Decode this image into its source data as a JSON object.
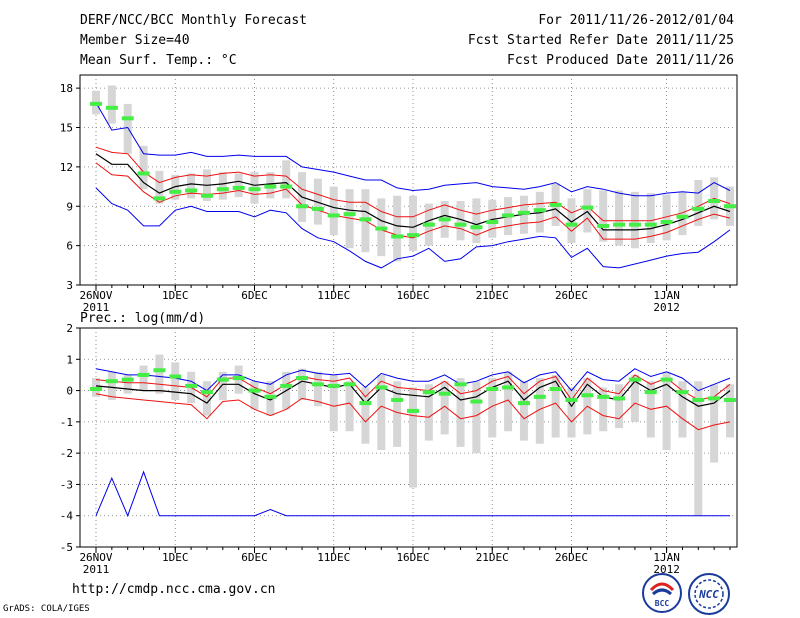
{
  "header": {
    "title": "DERF/NCC/BCC Monthly Forecast",
    "member_size": "Member Size=40",
    "variable": "Mean Surf. Temp.: °C",
    "forecast_period": "For 2011/11/26-2012/01/04",
    "started_date": "Fcst Started Refer Date 2011/11/25",
    "produced_date": "Fcst Produced Date 2011/11/26"
  },
  "footer": {
    "url": "http://cmdp.ncc.cma.gov.cn",
    "credit": "GrADS: COLA/IGES",
    "logo_bcc_text": "BCC",
    "logo_ncc_text": "NCC"
  },
  "colors": {
    "box": "#d6d6d6",
    "median": "#44ee44",
    "mean": "#000000",
    "stdev": "#ee1111",
    "extreme": "#0000ee",
    "grid": "#777777"
  },
  "chart_data": [
    {
      "type": "line",
      "name": "temperature",
      "title": "Mean Surf. Temp.: °C",
      "ylim": [
        3,
        19
      ],
      "yticks": [
        3,
        6,
        9,
        12,
        15,
        18
      ],
      "x_tick_labels": [
        {
          "day": 0,
          "label": "26NOV",
          "sub": "2011"
        },
        {
          "day": 5,
          "label": "1DEC"
        },
        {
          "day": 10,
          "label": "6DEC"
        },
        {
          "day": 15,
          "label": "11DEC"
        },
        {
          "day": 20,
          "label": "16DEC"
        },
        {
          "day": 25,
          "label": "21DEC"
        },
        {
          "day": 30,
          "label": "26DEC"
        },
        {
          "day": 36,
          "label": "1JAN",
          "sub": "2012"
        }
      ],
      "mean": [
        13.0,
        12.2,
        12.2,
        10.8,
        10.0,
        10.5,
        10.7,
        10.6,
        10.7,
        10.9,
        10.6,
        10.7,
        10.8,
        9.7,
        9.3,
        8.9,
        8.7,
        8.6,
        7.9,
        7.5,
        7.4,
        7.9,
        8.3,
        8.0,
        7.6,
        8.0,
        8.2,
        8.4,
        8.5,
        8.8,
        7.8,
        8.6,
        7.2,
        7.2,
        7.2,
        7.3,
        7.6,
        8.0,
        8.5,
        9.0,
        8.6
      ],
      "upper_sd": [
        13.5,
        13.1,
        13.0,
        11.6,
        10.8,
        11.2,
        11.4,
        11.3,
        11.5,
        11.6,
        11.3,
        11.4,
        11.3,
        10.3,
        9.9,
        9.5,
        9.3,
        9.3,
        8.6,
        8.2,
        8.2,
        8.7,
        9.1,
        8.7,
        8.4,
        8.7,
        8.9,
        9.1,
        9.2,
        9.3,
        8.5,
        9.0,
        7.9,
        7.9,
        7.9,
        7.9,
        8.2,
        8.5,
        9.0,
        9.6,
        9.2
      ],
      "lower_sd": [
        12.3,
        11.4,
        11.3,
        10.1,
        9.3,
        9.8,
        10.0,
        9.9,
        10.0,
        10.2,
        9.9,
        10.0,
        10.3,
        9.1,
        8.7,
        8.3,
        8.1,
        7.9,
        7.2,
        6.8,
        6.6,
        7.1,
        7.5,
        7.3,
        6.8,
        7.3,
        7.5,
        7.7,
        7.8,
        8.2,
        7.1,
        8.1,
        6.5,
        6.5,
        6.5,
        6.7,
        7.0,
        7.5,
        8.0,
        8.4,
        8.1
      ],
      "max": [
        16.9,
        14.8,
        15.0,
        13.0,
        12.9,
        12.9,
        13.1,
        12.8,
        12.8,
        12.9,
        12.8,
        12.8,
        12.8,
        12.0,
        11.8,
        11.6,
        11.3,
        11.0,
        11.0,
        10.4,
        10.2,
        10.3,
        10.6,
        10.7,
        10.8,
        10.5,
        10.4,
        10.3,
        10.5,
        10.8,
        10.1,
        10.5,
        10.3,
        10.0,
        9.8,
        9.8,
        10.0,
        10.1,
        10.0,
        10.8,
        10.2
      ],
      "min": [
        10.4,
        9.2,
        8.7,
        7.5,
        7.5,
        8.7,
        9.0,
        8.6,
        8.6,
        8.6,
        8.2,
        8.7,
        8.5,
        7.3,
        6.6,
        6.3,
        5.6,
        4.8,
        4.3,
        5.0,
        5.2,
        5.8,
        4.8,
        5.0,
        5.9,
        6.0,
        6.3,
        6.5,
        6.7,
        6.6,
        5.1,
        5.8,
        4.4,
        4.3,
        4.6,
        4.9,
        5.2,
        5.4,
        5.5,
        6.3,
        7.2
      ],
      "median": [
        16.8,
        16.5,
        15.7,
        11.5,
        9.6,
        10.1,
        10.2,
        9.8,
        10.3,
        10.4,
        10.3,
        10.5,
        10.5,
        9.0,
        8.8,
        8.3,
        8.4,
        8.0,
        7.3,
        6.7,
        6.8,
        7.6,
        8.0,
        7.6,
        7.4,
        7.8,
        8.3,
        8.5,
        8.7,
        9.1,
        7.6,
        8.9,
        7.5,
        7.6,
        7.6,
        7.6,
        7.8,
        8.2,
        8.8,
        9.4,
        9.0
      ],
      "box_hi": [
        17.8,
        18.2,
        16.8,
        13.6,
        11.7,
        11.4,
        11.5,
        11.8,
        11.6,
        11.5,
        11.6,
        11.6,
        12.5,
        11.6,
        11.1,
        10.5,
        10.3,
        10.3,
        9.6,
        9.8,
        9.8,
        9.2,
        9.4,
        9.4,
        9.6,
        9.5,
        9.7,
        9.8,
        10.1,
        10.7,
        9.6,
        10.3,
        10.2,
        10.2,
        10.1,
        10.0,
        9.9,
        10.1,
        11.0,
        11.2,
        10.5
      ],
      "box_lo": [
        16.0,
        15.3,
        13.0,
        10.3,
        9.2,
        9.5,
        9.6,
        9.4,
        9.5,
        9.7,
        9.2,
        9.6,
        9.6,
        7.8,
        7.6,
        6.8,
        5.8,
        5.5,
        5.2,
        4.8,
        5.6,
        6.0,
        6.6,
        6.4,
        6.2,
        6.6,
        6.8,
        6.9,
        7.0,
        7.5,
        6.2,
        7.0,
        6.3,
        6.0,
        5.8,
        6.2,
        6.4,
        6.8,
        7.5,
        8.0,
        7.5
      ]
    },
    {
      "type": "line",
      "name": "precipitation",
      "title": "Prec.: log(mm/d)",
      "ylim": [
        -5,
        2
      ],
      "yticks": [
        -5,
        -4,
        -3,
        -2,
        -1,
        0,
        1,
        2
      ],
      "x_tick_labels": [
        {
          "day": 0,
          "label": "26NOV",
          "sub": "2011"
        },
        {
          "day": 5,
          "label": "1DEC"
        },
        {
          "day": 10,
          "label": "6DEC"
        },
        {
          "day": 15,
          "label": "11DEC"
        },
        {
          "day": 20,
          "label": "16DEC"
        },
        {
          "day": 25,
          "label": "21DEC"
        },
        {
          "day": 30,
          "label": "26DEC"
        },
        {
          "day": 36,
          "label": "1JAN",
          "sub": "2012"
        }
      ],
      "mean": [
        0.15,
        0.1,
        0.05,
        0.0,
        0.0,
        -0.05,
        -0.1,
        -0.4,
        0.2,
        0.2,
        -0.1,
        -0.3,
        0.0,
        0.3,
        0.2,
        0.1,
        0.2,
        -0.4,
        0.1,
        -0.1,
        -0.15,
        -0.2,
        0.1,
        -0.3,
        -0.2,
        0.1,
        0.3,
        -0.3,
        0.1,
        0.3,
        -0.5,
        0.2,
        -0.2,
        -0.3,
        0.3,
        0.0,
        0.2,
        -0.2,
        -0.5,
        -0.4,
        0.0
      ],
      "upper_sd": [
        0.35,
        0.3,
        0.25,
        0.25,
        0.2,
        0.15,
        0.1,
        -0.2,
        0.4,
        0.4,
        0.1,
        -0.1,
        0.2,
        0.45,
        0.35,
        0.3,
        0.4,
        -0.2,
        0.3,
        0.1,
        0.05,
        0.0,
        0.3,
        -0.1,
        0.0,
        0.3,
        0.45,
        -0.1,
        0.3,
        0.45,
        -0.3,
        0.4,
        0.0,
        -0.1,
        0.5,
        0.2,
        0.4,
        0.0,
        -0.3,
        -0.2,
        0.2
      ],
      "lower_sd": [
        -0.1,
        -0.2,
        -0.25,
        -0.3,
        -0.35,
        -0.4,
        -0.45,
        -0.9,
        -0.35,
        -0.3,
        -0.6,
        -0.8,
        -0.6,
        -0.25,
        -0.35,
        -0.5,
        -0.4,
        -1.0,
        -0.5,
        -0.7,
        -0.8,
        -0.85,
        -0.5,
        -0.9,
        -0.8,
        -0.5,
        -0.3,
        -0.9,
        -0.6,
        -0.4,
        -1.0,
        -0.5,
        -0.8,
        -0.9,
        -0.4,
        -0.6,
        -0.5,
        -0.9,
        -1.25,
        -1.1,
        -1.0
      ],
      "max": [
        0.7,
        0.6,
        0.5,
        0.5,
        0.45,
        0.4,
        0.3,
        0.0,
        0.5,
        0.5,
        0.3,
        0.2,
        0.5,
        0.65,
        0.55,
        0.5,
        0.55,
        0.1,
        0.55,
        0.4,
        0.3,
        0.3,
        0.5,
        0.2,
        0.3,
        0.5,
        0.6,
        0.25,
        0.5,
        0.6,
        0.0,
        0.6,
        0.35,
        0.3,
        0.7,
        0.45,
        0.6,
        0.4,
        0.0,
        0.2,
        0.4
      ],
      "min": [
        -4.0,
        -2.8,
        -4.0,
        -2.6,
        -4.0,
        -4.0,
        -4.0,
        -4.0,
        -4.0,
        -4.0,
        -4.0,
        -3.8,
        -4.0,
        -4.0,
        -4.0,
        -4.0,
        -4.0,
        -4.0,
        -4.0,
        -4.0,
        -4.0,
        -4.0,
        -4.0,
        -4.0,
        -4.0,
        -4.0,
        -4.0,
        -4.0,
        -4.0,
        -4.0,
        -4.0,
        -4.0,
        -4.0,
        -4.0,
        -4.0,
        -4.0,
        -4.0,
        -4.0,
        -4.0,
        -4.0,
        -4.0
      ],
      "median": [
        0.05,
        0.3,
        0.35,
        0.5,
        0.65,
        0.45,
        0.15,
        -0.05,
        0.35,
        0.4,
        0.0,
        -0.2,
        0.15,
        0.4,
        0.2,
        0.15,
        0.2,
        -0.4,
        0.1,
        -0.3,
        -0.65,
        -0.05,
        -0.1,
        0.2,
        -0.35,
        0.05,
        0.1,
        -0.4,
        -0.2,
        0.05,
        -0.3,
        -0.15,
        -0.2,
        -0.25,
        0.35,
        -0.05,
        0.35,
        -0.05,
        -0.3,
        -0.25,
        -0.3
      ],
      "box_hi": [
        0.4,
        0.6,
        0.5,
        0.8,
        1.15,
        0.9,
        0.6,
        0.3,
        0.6,
        0.8,
        0.3,
        0.3,
        0.6,
        0.7,
        0.6,
        0.5,
        0.3,
        0.1,
        0.5,
        0.3,
        0.1,
        0.2,
        0.3,
        0.4,
        0.3,
        0.4,
        0.6,
        0.3,
        0.4,
        0.5,
        0.1,
        0.4,
        0.1,
        0.2,
        0.5,
        0.3,
        0.6,
        0.3,
        0.3,
        0.2,
        0.2
      ],
      "box_lo": [
        -0.2,
        -0.3,
        -0.1,
        0.0,
        -0.1,
        -0.3,
        -0.4,
        -0.8,
        -0.3,
        -0.1,
        -0.6,
        -0.8,
        -0.6,
        -0.3,
        -0.5,
        -1.3,
        -1.3,
        -1.7,
        -1.9,
        -1.8,
        -3.1,
        -1.6,
        -1.4,
        -1.8,
        -2.0,
        -1.5,
        -1.3,
        -1.6,
        -1.7,
        -1.5,
        -1.5,
        -1.4,
        -1.3,
        -1.2,
        -1.0,
        -1.5,
        -1.9,
        -1.5,
        -4.0,
        -2.3,
        -1.5
      ]
    }
  ]
}
